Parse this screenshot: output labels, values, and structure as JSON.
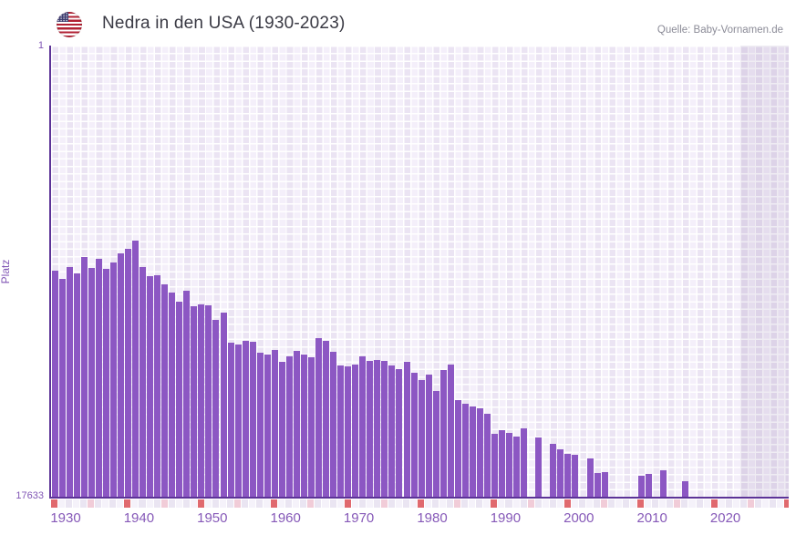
{
  "header": {
    "title": "Nedra in den USA (1930-2023)",
    "source": "Quelle: Baby-Vornamen.de"
  },
  "colors": {
    "bar": "#8c57c3",
    "axis_line": "#5c3397",
    "axis_label": "#8156b5",
    "tick_label": "#8659b8",
    "title_text": "#3a3a44",
    "source_text": "#8b8b97",
    "grid_cell_dark": "#ebe4f3",
    "grid_cell_light": "#f4effa",
    "future_band_overlay": "rgba(96,70,140,0.10)",
    "marker_red": "#e0696e",
    "marker_pink": "#f1ccd8",
    "marker_cell_a": "#eae5f2",
    "marker_cell_b": "#f5f2fa"
  },
  "chart_data": {
    "type": "bar",
    "title": "Nedra in den USA (1930-2023)",
    "ylabel": "Platz",
    "xlabel": "",
    "y_axis": {
      "top_tick_label": "1",
      "bottom_tick_label": "17633",
      "min": 1,
      "max": 17633,
      "inverted": true,
      "note": "rank 1 at top; taller bar = better rank"
    },
    "x_axis": {
      "first_year": 1930,
      "last_data_year": 2023,
      "axis_extends_to": 2030,
      "tick_labels": [
        "1930",
        "1940",
        "1950",
        "1960",
        "1970",
        "1980",
        "1990",
        "2000",
        "2010",
        "2020"
      ],
      "red_marker_years_every": 10,
      "pink_marker_years_every": 5
    },
    "legend": "none",
    "grid": true,
    "years": [
      1930,
      1931,
      1932,
      1933,
      1934,
      1935,
      1936,
      1937,
      1938,
      1939,
      1940,
      1941,
      1942,
      1943,
      1944,
      1945,
      1946,
      1947,
      1948,
      1949,
      1950,
      1951,
      1952,
      1953,
      1954,
      1955,
      1956,
      1957,
      1958,
      1959,
      1960,
      1961,
      1962,
      1963,
      1964,
      1965,
      1966,
      1967,
      1968,
      1969,
      1970,
      1971,
      1972,
      1973,
      1974,
      1975,
      1976,
      1977,
      1978,
      1979,
      1980,
      1981,
      1982,
      1983,
      1984,
      1985,
      1986,
      1987,
      1988,
      1989,
      1990,
      1991,
      1992,
      1993,
      1994,
      1995,
      1996,
      1997,
      1998,
      1999,
      2000,
      2001,
      2002,
      2003,
      2004,
      2005,
      2006,
      2007,
      2008,
      2009,
      2010,
      2011,
      2012,
      2013,
      2014,
      2015,
      2016,
      2017,
      2018,
      2019,
      2020,
      2021,
      2022,
      2023
    ],
    "ranks": [
      8790,
      9110,
      8645,
      8915,
      8255,
      8690,
      8345,
      8725,
      8490,
      8110,
      7935,
      7635,
      8645,
      9030,
      8975,
      9350,
      9655,
      10025,
      9580,
      10205,
      10115,
      10150,
      10740,
      10435,
      11630,
      11700,
      11525,
      11575,
      12020,
      12060,
      11895,
      12345,
      12165,
      11935,
      12060,
      12200,
      11435,
      11525,
      11970,
      12520,
      12540,
      12470,
      12145,
      12325,
      12305,
      12325,
      12520,
      12645,
      12345,
      12790,
      13090,
      12860,
      13485,
      12680,
      12470,
      13840,
      14000,
      14105,
      14175,
      14375,
      15175,
      15050,
      15155,
      15265,
      14960,
      null,
      15335,
      null,
      15565,
      15780,
      15960,
      16010,
      null,
      16120,
      16705,
      16670,
      null,
      null,
      null,
      null,
      16815,
      16740,
      null,
      16600,
      null,
      null,
      17010,
      null,
      null,
      null,
      null,
      null,
      null,
      null
    ]
  }
}
